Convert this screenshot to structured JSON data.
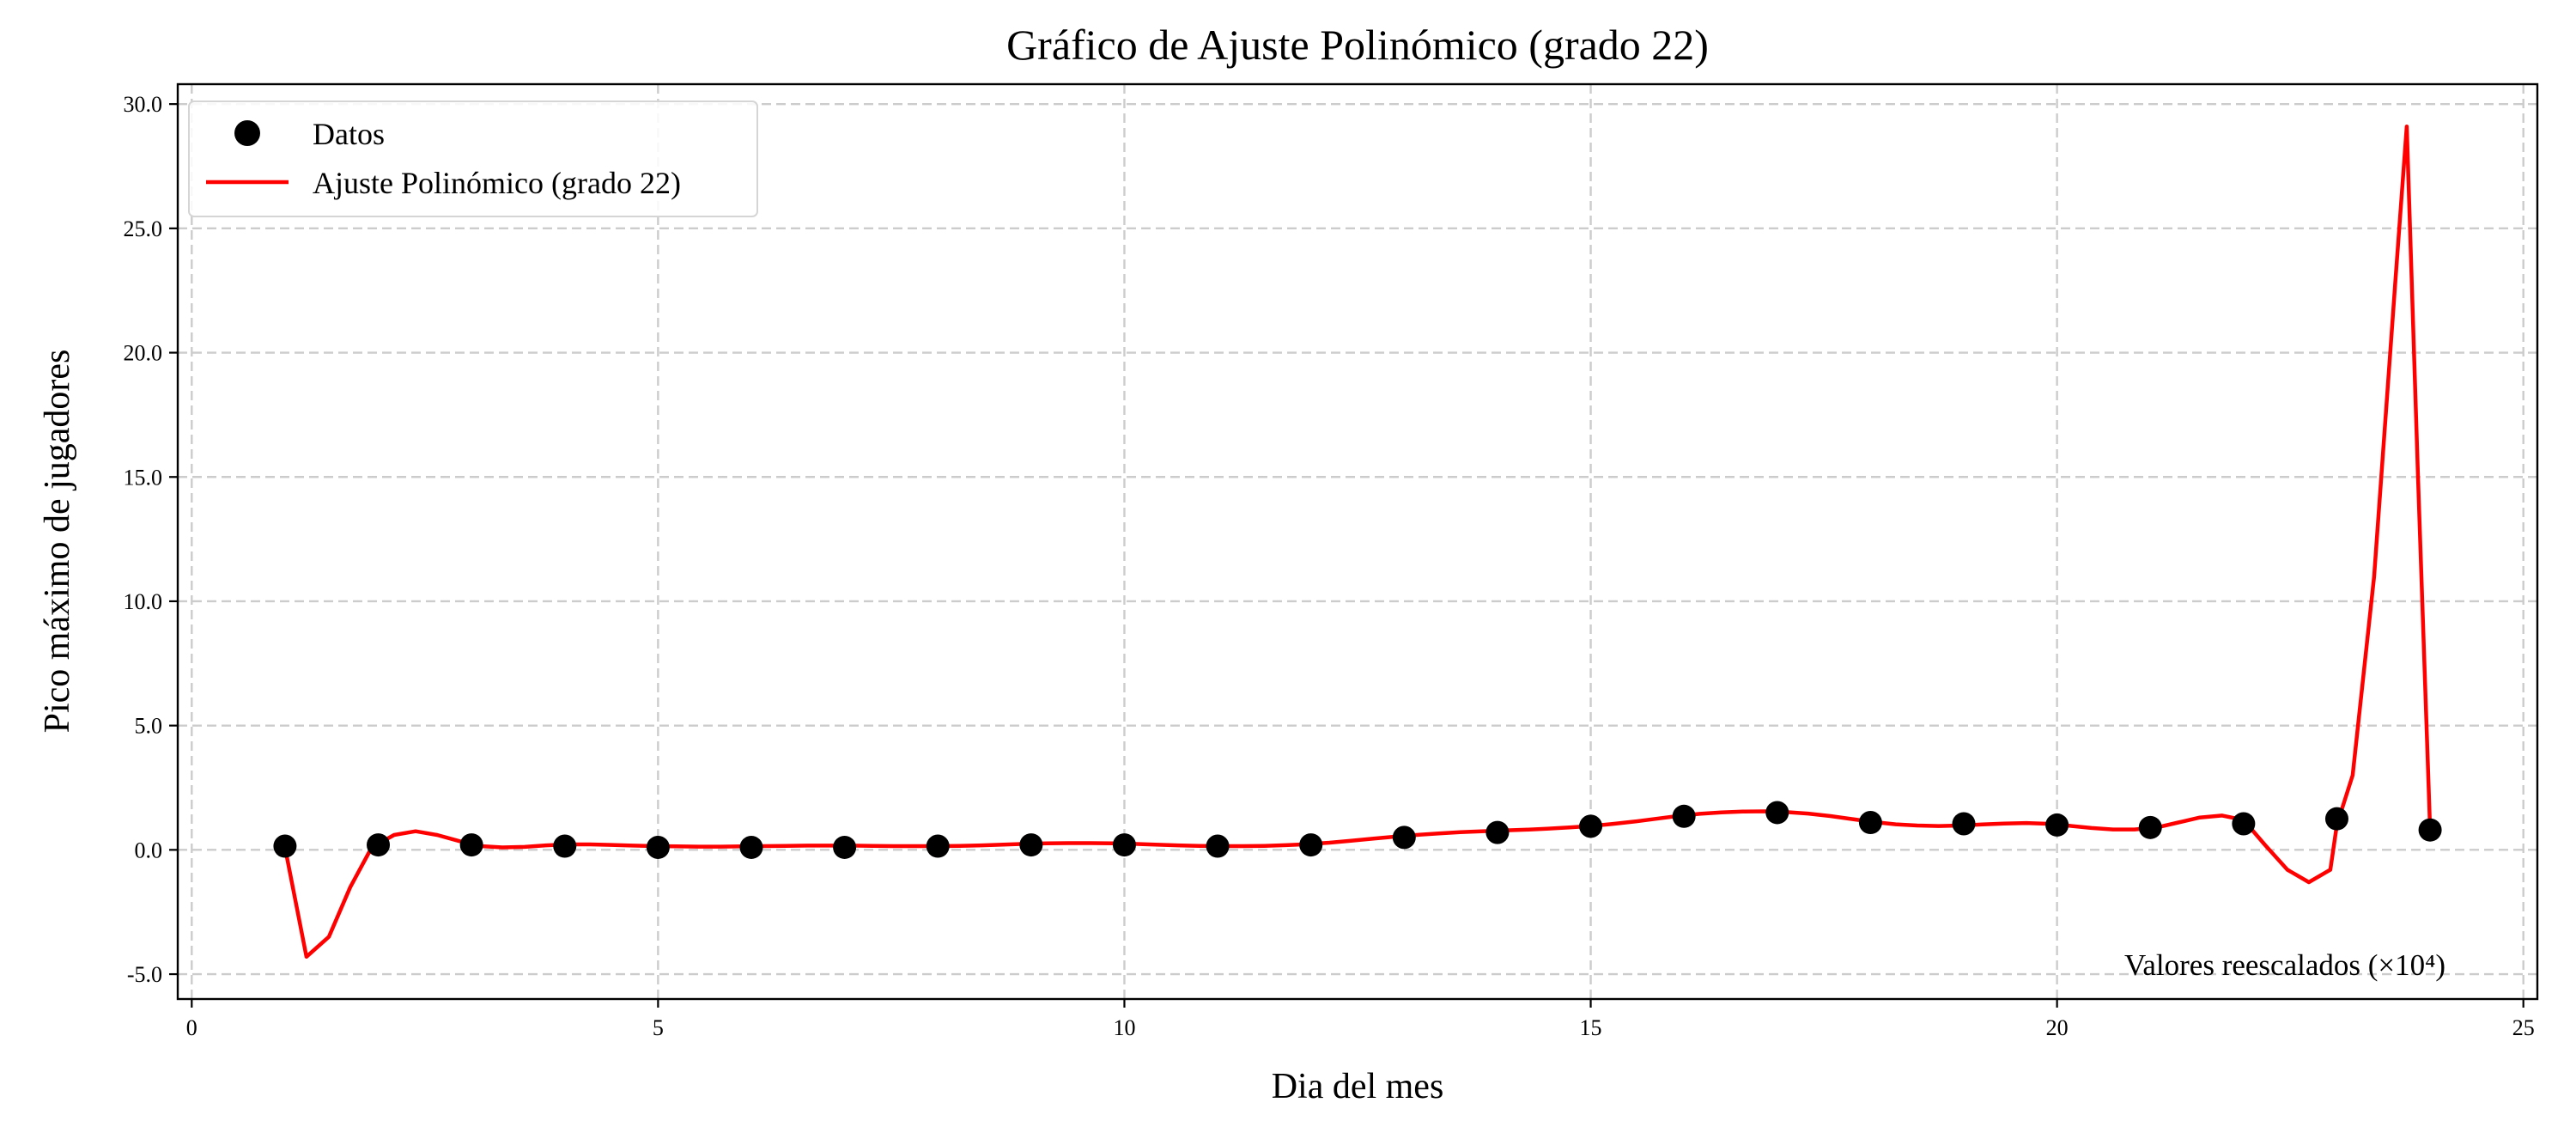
{
  "chart_data": {
    "type": "scatter",
    "title": "Gráfico de Ajuste Polinómico (grado 22)",
    "xlabel": "Dia del mes",
    "ylabel": "Pico máximo de jugadores",
    "xlim": [
      -0.15,
      25.15
    ],
    "ylim": [
      -6.0,
      30.8
    ],
    "xticks": [
      0,
      5,
      10,
      15,
      20,
      25
    ],
    "xtick_labels": [
      "0",
      "5",
      "10",
      "15",
      "20",
      "25"
    ],
    "yticks": [
      -5,
      0,
      5,
      10,
      15,
      20,
      25,
      30
    ],
    "ytick_labels": [
      "-5.0",
      "0.0",
      "5.0",
      "10.0",
      "15.0",
      "20.0",
      "25.0",
      "30.0"
    ],
    "grid": true,
    "legend_position": "top-left",
    "annotation": "Valores reescalados (×10⁴)",
    "series": [
      {
        "name": "Datos",
        "kind": "scatter",
        "color": "#000000",
        "x": [
          1,
          2,
          3,
          4,
          5,
          6,
          7,
          8,
          9,
          10,
          11,
          12,
          13,
          14,
          15,
          16,
          17,
          18,
          19,
          20,
          21,
          22,
          23,
          24
        ],
        "y": [
          0.15,
          0.2,
          0.2,
          0.15,
          0.1,
          0.1,
          0.1,
          0.15,
          0.2,
          0.2,
          0.15,
          0.2,
          0.5,
          0.7,
          0.95,
          1.35,
          1.5,
          1.1,
          1.05,
          1.0,
          0.9,
          1.05,
          1.25,
          0.8
        ]
      },
      {
        "name": "Ajuste Polinómico (grado 22)",
        "kind": "line",
        "color": "#ff0000",
        "x": [
          1.0,
          1.23,
          1.47,
          1.7,
          1.93,
          2.17,
          2.4,
          2.63,
          2.87,
          3.1,
          3.33,
          3.57,
          3.8,
          4.03,
          4.27,
          4.5,
          4.73,
          4.97,
          5.2,
          5.43,
          5.67,
          5.9,
          6.13,
          6.37,
          6.6,
          6.83,
          7.07,
          7.3,
          7.53,
          7.77,
          8.0,
          8.23,
          8.47,
          8.7,
          8.93,
          9.17,
          9.4,
          9.63,
          9.87,
          10.1,
          10.33,
          10.57,
          10.8,
          11.03,
          11.27,
          11.5,
          11.73,
          11.97,
          12.2,
          12.43,
          12.67,
          12.9,
          13.13,
          13.37,
          13.6,
          13.83,
          14.07,
          14.3,
          14.53,
          14.77,
          15.0,
          15.23,
          15.47,
          15.7,
          15.93,
          16.17,
          16.4,
          16.63,
          16.87,
          17.1,
          17.33,
          17.57,
          17.8,
          18.03,
          18.27,
          18.5,
          18.73,
          18.97,
          19.2,
          19.43,
          19.67,
          19.9,
          20.13,
          20.37,
          20.6,
          20.83,
          21.07,
          21.3,
          21.53,
          21.77,
          22.0,
          22.23,
          22.47,
          22.7,
          22.93,
          23.0,
          23.17,
          23.4,
          23.63,
          23.75,
          23.87,
          24.0
        ],
        "y": [
          0.1,
          -4.3,
          -3.5,
          -1.5,
          0.1,
          0.6,
          0.75,
          0.6,
          0.35,
          0.15,
          0.1,
          0.12,
          0.18,
          0.22,
          0.22,
          0.2,
          0.17,
          0.15,
          0.14,
          0.13,
          0.13,
          0.14,
          0.15,
          0.16,
          0.17,
          0.17,
          0.17,
          0.16,
          0.15,
          0.15,
          0.15,
          0.16,
          0.18,
          0.21,
          0.24,
          0.26,
          0.27,
          0.27,
          0.26,
          0.24,
          0.21,
          0.18,
          0.16,
          0.15,
          0.15,
          0.16,
          0.19,
          0.23,
          0.29,
          0.37,
          0.45,
          0.53,
          0.6,
          0.66,
          0.71,
          0.75,
          0.78,
          0.81,
          0.85,
          0.9,
          0.96,
          1.04,
          1.14,
          1.25,
          1.36,
          1.45,
          1.51,
          1.54,
          1.55,
          1.52,
          1.46,
          1.36,
          1.24,
          1.12,
          1.03,
          0.98,
          0.96,
          0.98,
          1.02,
          1.06,
          1.08,
          1.05,
          0.97,
          0.88,
          0.82,
          0.82,
          0.9,
          1.1,
          1.3,
          1.38,
          1.2,
          0.2,
          -0.8,
          -1.3,
          -0.8,
          1.0,
          3.0,
          11.0,
          23.0,
          29.1,
          15.0,
          0.8
        ]
      }
    ]
  }
}
